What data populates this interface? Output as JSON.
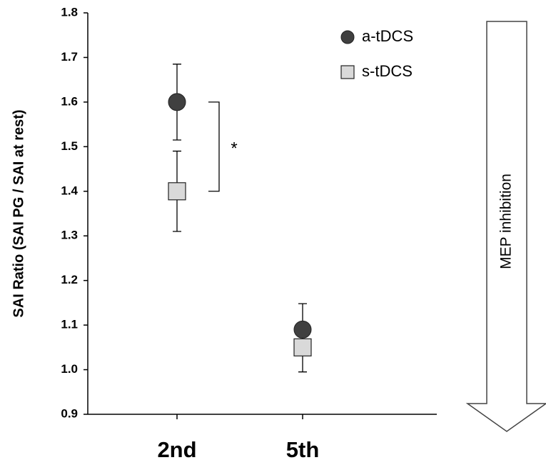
{
  "chart_data": {
    "type": "scatter",
    "y_label": "SAI Ratio (SAI PG / SAI at rest)",
    "categories": [
      "2nd",
      "5th"
    ],
    "series": [
      {
        "name": "a-tDCS",
        "color": "#404040",
        "marker": "circle",
        "values": [
          1.6,
          1.09
        ],
        "errors": [
          0.085,
          0.058
        ]
      },
      {
        "name": "s-tDCS",
        "color": "#d9d9d9",
        "marker": "square",
        "values": [
          1.4,
          1.05
        ],
        "errors": [
          0.09,
          0.055
        ]
      }
    ],
    "ylim": [
      0.9,
      1.8
    ],
    "yticks": [
      0.9,
      {
        "value": 1,
        "label": "1.0"
      },
      1.1,
      1.2,
      1.3,
      1.4,
      1.5,
      1.6,
      1.7,
      1.8
    ],
    "annotation": "*",
    "arrow_label": "MEP inhibition"
  }
}
